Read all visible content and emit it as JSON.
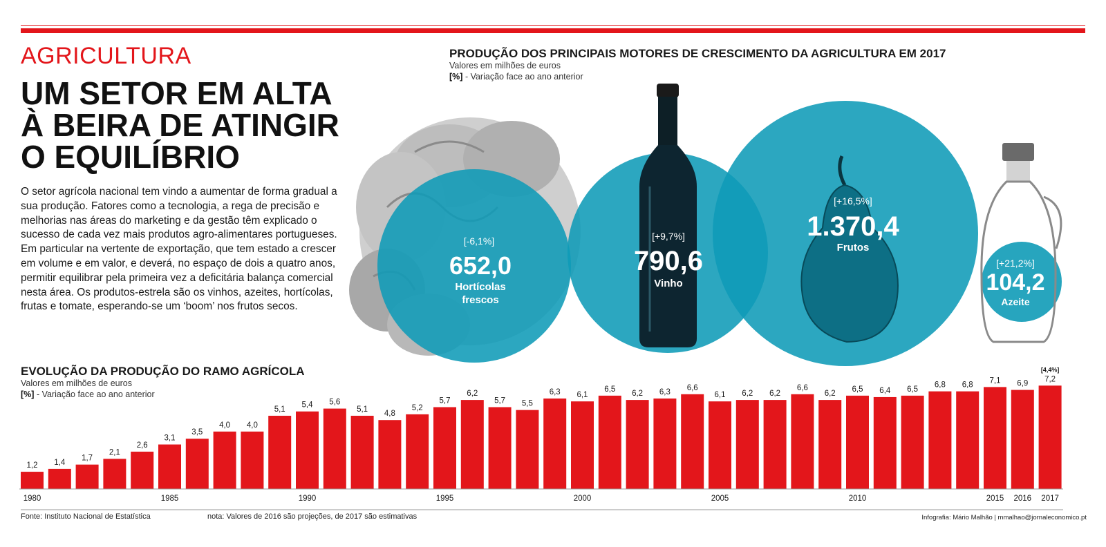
{
  "header": {
    "kicker": "AGRICULTURA",
    "headline_lines": [
      "UM SETOR EM ALTA",
      "À BEIRA DE ATINGIR",
      "O EQUILÍBRIO"
    ],
    "body": "O setor agrícola nacional tem vindo a aumentar de forma gradual a sua produção. Fatores como a tecnologia, a rega de precisão e melhorias nas áreas do marketing e da gestão têm explicado o sucesso de cada vez mais produtos agro-alimentares portugueses. Em particular na vertente de exportação, que tem estado a crescer em volume e em valor, e deverá, no espaço de dois a quatro anos, permitir equilibrar pela primeira vez a deficitária balança comercial nesta área. Os produtos-estrela são os vinhos, azeites, hortícolas, frutas e tomate, esperando-se um ‘boom’ nos frutos secos."
  },
  "colors": {
    "accent_red": "#e3161b",
    "teal": "#0f9bb7"
  },
  "chart_data": [
    {
      "type": "bubble",
      "title": "PRODUÇÃO DOS PRINCIPAIS MOTORES DE CRESCIMENTO DA AGRICULTURA EM 2017",
      "subtitle": "Valores em milhões de euros",
      "legend_bracket": "[%]",
      "legend_text": "- Variação face ao ano anterior",
      "items": [
        {
          "label_lines": [
            "Hortícolas",
            "frescos"
          ],
          "value": "652,0",
          "change": "[-6,1%]",
          "icon": "lettuce-icon"
        },
        {
          "label_lines": [
            "Vinho"
          ],
          "value": "790,6",
          "change": "[+9,7%]",
          "icon": "wine-bottle-icon"
        },
        {
          "label_lines": [
            "Frutos"
          ],
          "value": "1.370,4",
          "change": "[+16,5%]",
          "icon": "pear-icon"
        },
        {
          "label_lines": [
            "Azeite"
          ],
          "value": "104,2",
          "change": "[+21,2%]",
          "icon": "olive-oil-bottle-icon"
        }
      ]
    },
    {
      "type": "bar",
      "title": "EVOLUÇÃO DA PRODUÇÃO DO RAMO AGRÍCOLA",
      "subtitle": "Valores em milhões de euros",
      "legend_bracket": "[%]",
      "legend_text": "- Variação face ao ano anterior",
      "categories": [
        "1980",
        "1981",
        "1982",
        "1983",
        "1984",
        "1985",
        "1986",
        "1987",
        "1988",
        "1989",
        "1990",
        "1991",
        "1992",
        "1993",
        "1994",
        "1995",
        "1996",
        "1997",
        "1998",
        "1999",
        "2000",
        "2001",
        "2002",
        "2003",
        "2004",
        "2005",
        "2006",
        "2007",
        "2008",
        "2009",
        "2010",
        "2011",
        "2012",
        "2013",
        "2014",
        "2015",
        "2016",
        "2017"
      ],
      "values": [
        1.2,
        1.4,
        1.7,
        2.1,
        2.6,
        3.1,
        3.5,
        4.0,
        4.0,
        5.1,
        5.4,
        5.6,
        5.1,
        4.8,
        5.2,
        5.7,
        6.2,
        5.7,
        5.5,
        6.3,
        6.1,
        6.5,
        6.2,
        6.3,
        6.6,
        6.1,
        6.2,
        6.2,
        6.6,
        6.2,
        6.5,
        6.4,
        6.5,
        6.8,
        6.8,
        7.1,
        6.9,
        7.2
      ],
      "value_labels": [
        "1,2",
        "1,4",
        "1,7",
        "2,1",
        "2,6",
        "3,1",
        "3,5",
        "4,0",
        "4,0",
        "5,1",
        "5,4",
        "5,6",
        "5,1",
        "4,8",
        "5,2",
        "5,7",
        "6,2",
        "5,7",
        "5,5",
        "6,3",
        "6,1",
        "6,5",
        "6,2",
        "6,3",
        "6,6",
        "6,1",
        "6,2",
        "6,2",
        "6,6",
        "6,2",
        "6,5",
        "6,4",
        "6,5",
        "6,8",
        "6,8",
        "7,1",
        "6,9",
        "7,2"
      ],
      "shown_tick_labels": [
        "1980",
        "1985",
        "1990",
        "1995",
        "2000",
        "2005",
        "2010",
        "2015",
        "2016",
        "2017"
      ],
      "last_change": "[4,4%]",
      "ylim": [
        0,
        7.6
      ]
    }
  ],
  "footer": {
    "source": "Fonte: Instituto Nacional de Estatística",
    "note": "nota: Valores de 2016 são projeções, de 2017 são estimativas",
    "credit": "Infografia: Mário Malhão  |  mmalhao@jornaleconomico.pt"
  }
}
